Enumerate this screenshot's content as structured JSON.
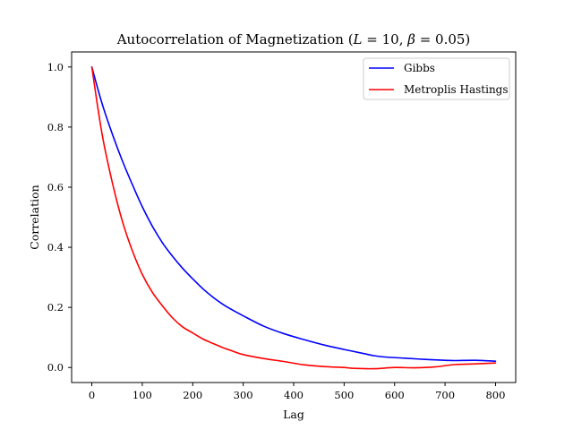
{
  "chart_data": {
    "type": "line",
    "title": "Autocorrelation of Magnetization (L = 10, β = 0.05)",
    "xlabel": "Lag",
    "ylabel": "Correlation",
    "xlim": [
      -40,
      840
    ],
    "ylim": [
      -0.05,
      1.05
    ],
    "xticks": [
      0,
      100,
      200,
      300,
      400,
      500,
      600,
      700,
      800
    ],
    "yticks": [
      0.0,
      0.2,
      0.4,
      0.6,
      0.8,
      1.0
    ],
    "xtick_labels": [
      "0",
      "100",
      "200",
      "300",
      "400",
      "500",
      "600",
      "700",
      "800"
    ],
    "ytick_labels": [
      "0.0",
      "0.2",
      "0.4",
      "0.6",
      "0.8",
      "1.0"
    ],
    "grid": false,
    "legend_position": "top-right",
    "series": [
      {
        "name": "Gibbs",
        "color": "#0000ff",
        "x": [
          0,
          20,
          40,
          60,
          80,
          100,
          120,
          140,
          160,
          180,
          200,
          220,
          240,
          260,
          280,
          300,
          340,
          380,
          420,
          460,
          500,
          540,
          560,
          580,
          620,
          660,
          700,
          720,
          760,
          800
        ],
        "y": [
          1.0,
          0.88,
          0.78,
          0.69,
          0.61,
          0.535,
          0.47,
          0.415,
          0.37,
          0.33,
          0.295,
          0.262,
          0.234,
          0.21,
          0.19,
          0.172,
          0.138,
          0.113,
          0.093,
          0.075,
          0.06,
          0.046,
          0.039,
          0.035,
          0.031,
          0.027,
          0.024,
          0.023,
          0.024,
          0.021
        ]
      },
      {
        "name": "Metroplis Hastings",
        "color": "#ff0000",
        "x": [
          0,
          20,
          40,
          60,
          80,
          100,
          120,
          140,
          160,
          180,
          200,
          220,
          240,
          260,
          280,
          300,
          340,
          380,
          420,
          460,
          500,
          520,
          560,
          600,
          640,
          680,
          720,
          760,
          800
        ],
        "y": [
          1.0,
          0.78,
          0.62,
          0.49,
          0.39,
          0.31,
          0.25,
          0.205,
          0.165,
          0.135,
          0.115,
          0.095,
          0.08,
          0.066,
          0.054,
          0.043,
          0.03,
          0.02,
          0.009,
          0.003,
          0.0,
          -0.003,
          -0.004,
          0.0,
          -0.001,
          0.002,
          0.01,
          0.012,
          0.015
        ]
      }
    ]
  }
}
